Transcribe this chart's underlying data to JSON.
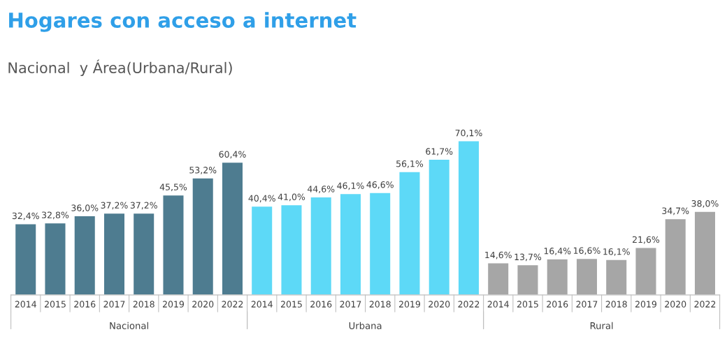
{
  "chart_data": {
    "type": "bar",
    "title": "Hogares con acceso a internet",
    "subtitle": "Nacional  y Área(Urbana/Rural)",
    "categories": [
      "2014",
      "2015",
      "2016",
      "2017",
      "2018",
      "2019",
      "2020",
      "2022",
      "2014",
      "2015",
      "2016",
      "2017",
      "2018",
      "2019",
      "2020",
      "2022",
      "2014",
      "2015",
      "2016",
      "2017",
      "2018",
      "2019",
      "2020",
      "2022"
    ],
    "series": [
      {
        "name": "Nacional",
        "color": "#4e7c90",
        "values": [
          32.4,
          32.8,
          36.0,
          37.2,
          37.2,
          45.5,
          53.2,
          60.4,
          null,
          null,
          null,
          null,
          null,
          null,
          null,
          null,
          null,
          null,
          null,
          null,
          null,
          null,
          null,
          null
        ],
        "value_labels": [
          "32,4%",
          "32,8%",
          "36,0%",
          "37,2%",
          "37,2%",
          "45,5%",
          "53,2%",
          "60,4%",
          null,
          null,
          null,
          null,
          null,
          null,
          null,
          null,
          null,
          null,
          null,
          null,
          null,
          null,
          null,
          null
        ]
      },
      {
        "name": "Urbana",
        "color": "#5dd9f7",
        "values": [
          null,
          null,
          null,
          null,
          null,
          null,
          null,
          null,
          40.4,
          41.0,
          44.6,
          46.1,
          46.6,
          56.1,
          61.7,
          70.1,
          null,
          null,
          null,
          null,
          null,
          null,
          null,
          null
        ],
        "value_labels": [
          null,
          null,
          null,
          null,
          null,
          null,
          null,
          null,
          "40,4%",
          "41,0%",
          "44,6%",
          "46,1%",
          "46,6%",
          "56,1%",
          "61,7%",
          "70,1%",
          null,
          null,
          null,
          null,
          null,
          null,
          null,
          null
        ]
      },
      {
        "name": "Rural",
        "color": "#a6a6a6",
        "values": [
          null,
          null,
          null,
          null,
          null,
          null,
          null,
          null,
          null,
          null,
          null,
          null,
          null,
          null,
          null,
          null,
          14.6,
          13.7,
          16.4,
          16.6,
          16.1,
          21.6,
          34.7,
          38.0
        ],
        "value_labels": [
          null,
          null,
          null,
          null,
          null,
          null,
          null,
          null,
          null,
          null,
          null,
          null,
          null,
          null,
          null,
          null,
          "14,6%",
          "13,7%",
          "16,4%",
          "16,6%",
          "16,1%",
          "21,6%",
          "34,7%",
          "38,0%"
        ]
      }
    ],
    "grid": false,
    "legend": false
  }
}
